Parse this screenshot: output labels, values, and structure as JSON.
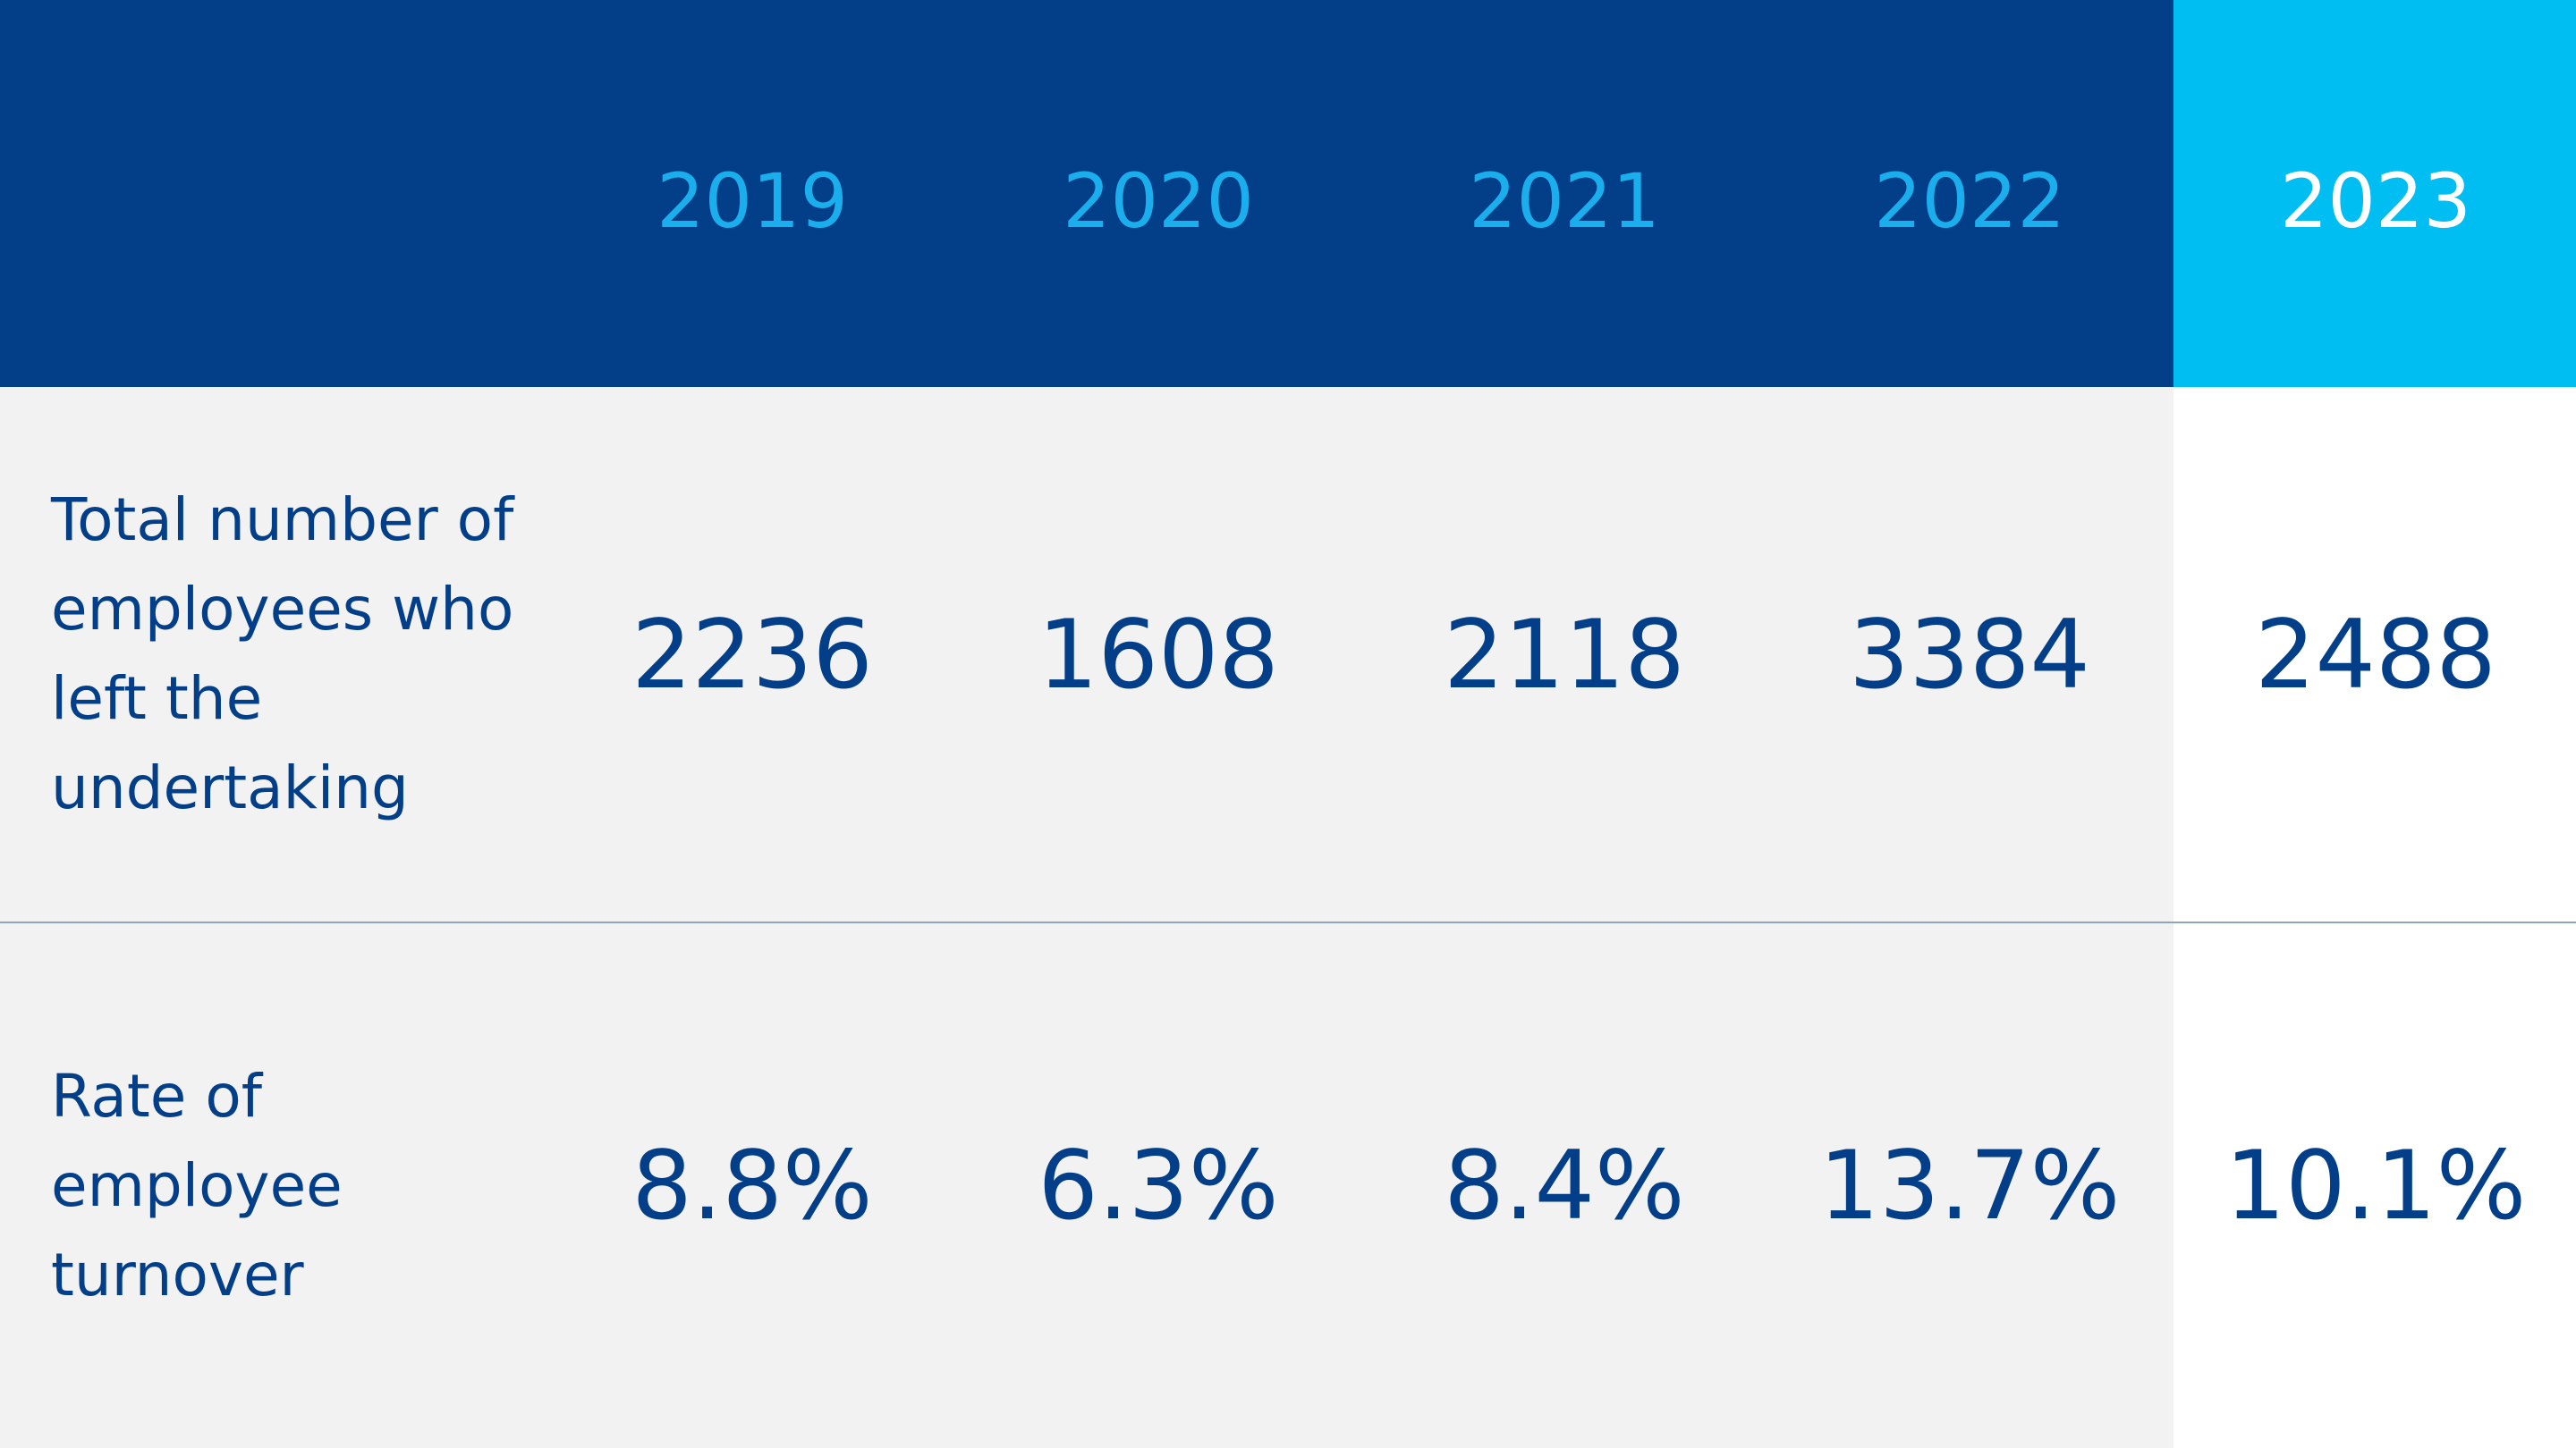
{
  "table": {
    "header": [
      "2019",
      "2020",
      "2021",
      "2022",
      "2023"
    ],
    "rows": [
      {
        "label": "Total number of employees who left the undertaking",
        "cells": [
          "2236",
          "1608",
          "2118",
          "3384",
          "2488"
        ]
      },
      {
        "label": "Rate of employee turnover",
        "cells": [
          "8.8%",
          "6.3%",
          "8.4%",
          "13.7%",
          "10.1%"
        ]
      }
    ]
  }
}
